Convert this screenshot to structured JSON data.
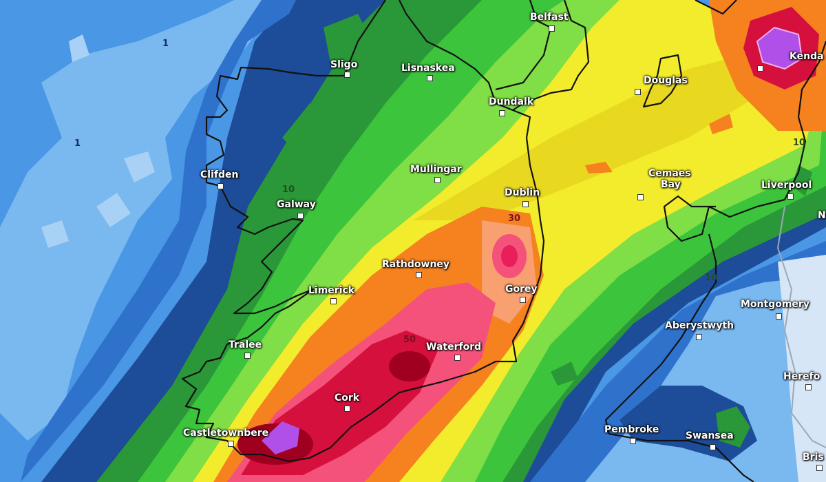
{
  "map": {
    "type": "precipitation-accumulation",
    "colors": {
      "pale_blue": "#a9d0f5",
      "light_blue": "#7ab8f0",
      "blue": "#4a97e6",
      "mid_blue": "#2f72cc",
      "navy": "#1d4c98",
      "dark_green": "#2a9838",
      "green": "#3cc43c",
      "light_green": "#80de46",
      "yellow": "#f3ec2c",
      "gold": "#e8d820",
      "orange": "#f5821f",
      "salmon": "#f8a070",
      "pink": "#f4527a",
      "red": "#d5103c",
      "dark_red": "#a00020",
      "purple": "#b050e8",
      "coastline": "#111111",
      "border": "#9aa8b8"
    },
    "cities": [
      "Belfast",
      "Sligo",
      "Lisnaskea",
      "Dundalk",
      "Douglas",
      "Kenda",
      "Clifden",
      "Mullingar",
      "Dublin",
      "Cemaes",
      "Bay",
      "Liverpool",
      "Galway",
      "Rathdowney",
      "Limerick",
      "Gorey",
      "Montgomery",
      "Aberystwyth",
      "Tralee",
      "Waterford",
      "Cork",
      "Castletownbere",
      "Pembroke",
      "Swansea",
      "Herefo",
      "Bris",
      "N"
    ],
    "contour_labels": [
      "1",
      "1",
      "10",
      "30",
      "50",
      "10",
      "10"
    ]
  }
}
